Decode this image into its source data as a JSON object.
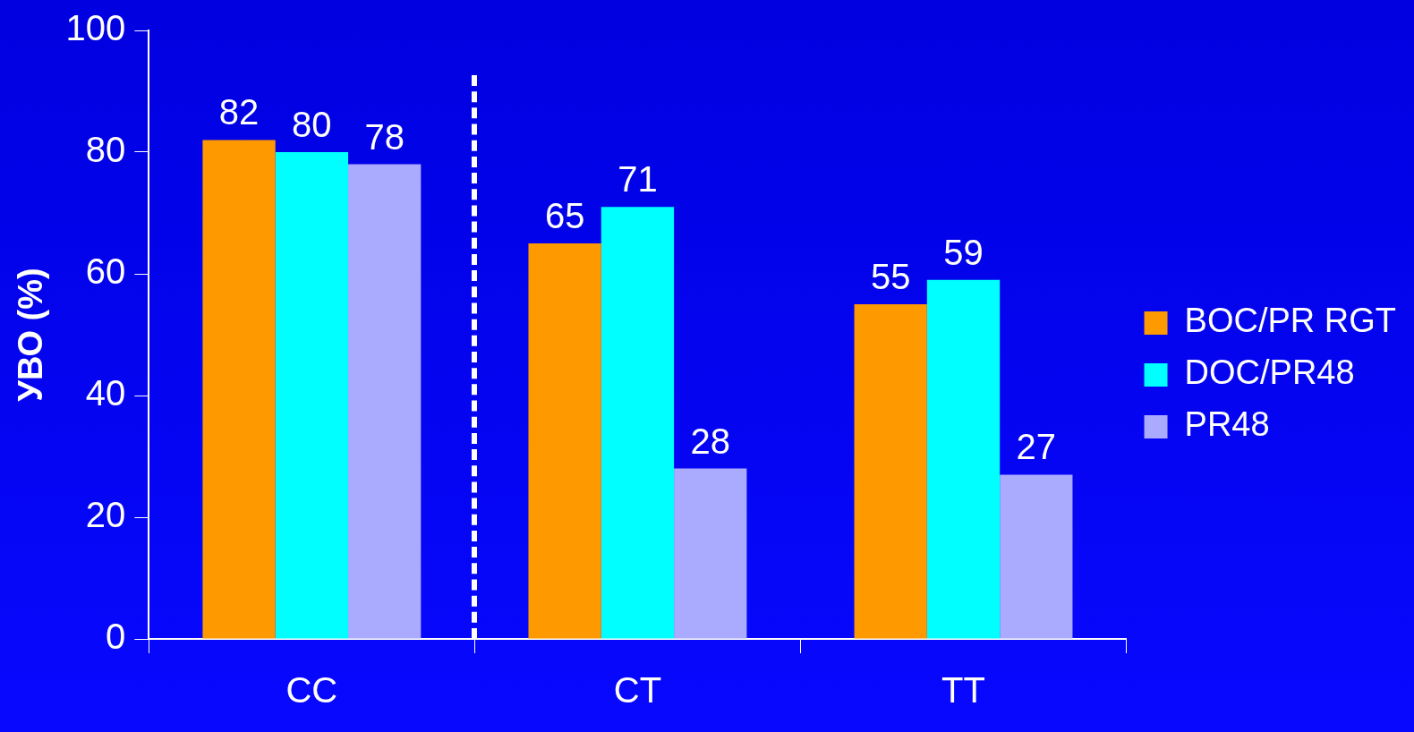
{
  "chart_data": {
    "type": "bar",
    "ylabel": "УВО (%)",
    "categories": [
      "CC",
      "CT",
      "TT"
    ],
    "series": [
      {
        "name": "BOC/PR RGT",
        "color": "#ff9900",
        "values": [
          82,
          65,
          55
        ]
      },
      {
        "name": "DOC/PR48",
        "color": "#00ffff",
        "values": [
          80,
          71,
          59
        ]
      },
      {
        "name": "PR48",
        "color": "#aaaaff",
        "values": [
          78,
          28,
          27
        ]
      }
    ],
    "ylim": [
      0,
      100
    ],
    "yticks": [
      0,
      20,
      40,
      60,
      80,
      100
    ],
    "grid": false,
    "legend": "right",
    "data_labels": true
  }
}
